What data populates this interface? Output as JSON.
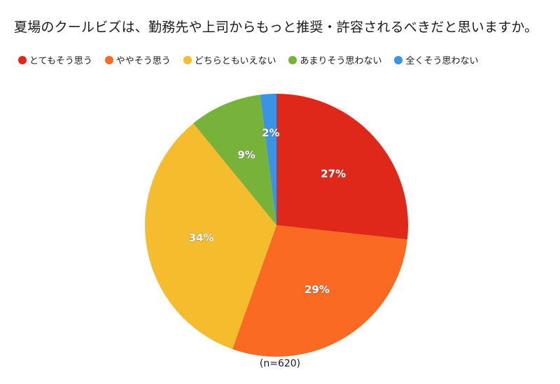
{
  "chart_data": {
    "type": "pie",
    "title": "夏場のクールビズは、勤務先や上司からもっと推奨・許容されるべきだと思いますか。",
    "note": "(n=620)",
    "legend_position": "top",
    "categories": [
      "とてもそう思う",
      "ややそう思う",
      "どちらともいえない",
      "あまりそう思わない",
      "全くそう思わない"
    ],
    "values": [
      27,
      29,
      34,
      9,
      2
    ],
    "labels": [
      "27%",
      "29%",
      "34%",
      "9%",
      "2%"
    ],
    "colors": [
      "#e0281a",
      "#fb6a22",
      "#f5bd2e",
      "#77b23a",
      "#3b93e8"
    ]
  }
}
